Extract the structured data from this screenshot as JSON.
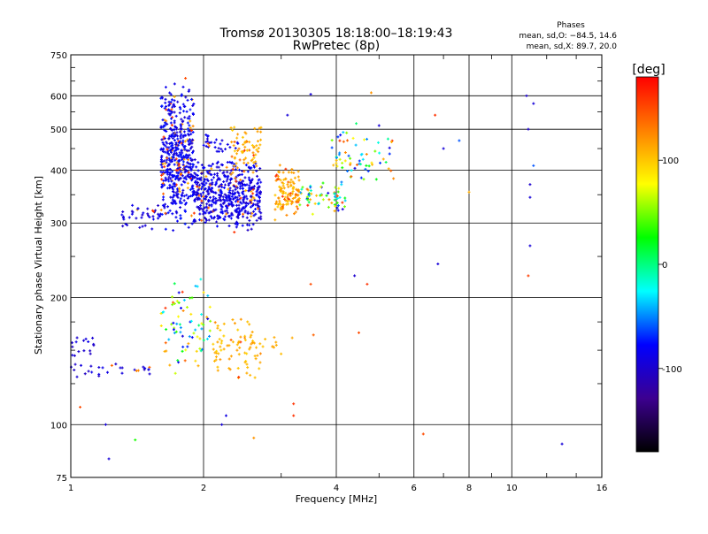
{
  "chart_data": {
    "type": "scatter",
    "title": "Tromsø 20130305 18:18:00–18:19:43",
    "subtitle": "RwPretec (8p)",
    "xlabel": "Frequency [MHz]",
    "ylabel": "Stationary phase Virtual Height [km]",
    "x_scale": "log",
    "y_scale": "log",
    "xlim": [
      1,
      16
    ],
    "ylim": [
      75,
      750
    ],
    "x_ticks": [
      1,
      2,
      4,
      6,
      8,
      10,
      16
    ],
    "x_tick_labels": [
      "1",
      "2",
      "4",
      "6",
      "8",
      "10",
      "16"
    ],
    "y_ticks": [
      75,
      100,
      200,
      300,
      400,
      500,
      600,
      750
    ],
    "y_tick_labels": [
      "75",
      "100",
      "200",
      "300",
      "400",
      "500",
      "600",
      "750"
    ],
    "grid": true,
    "colorbar": {
      "label": "[deg]",
      "range": [
        -180,
        180
      ],
      "ticks": [
        100,
        0,
        -100
      ],
      "tick_labels": [
        "100",
        "0",
        "-100"
      ],
      "stops": [
        "#000000",
        "#3c0090",
        "#0000ff",
        "#00ffff",
        "#00ff00",
        "#ffff00",
        "#ff8000",
        "#ff0000"
      ]
    },
    "stats": {
      "heading": "Phases",
      "line1": "mean, sd,O: −84.5, 14.6",
      "line2": "mean, sd,X:  89.7, 20.0"
    },
    "clusters": [
      {
        "f": [
          1.6,
          1.9
        ],
        "h": [
          280,
          640
        ],
        "n": 520,
        "phase": [
          -100,
          -70
        ],
        "warm": 0.12
      },
      {
        "f": [
          1.9,
          2.7
        ],
        "h": [
          285,
          430
        ],
        "n": 520,
        "phase": [
          -105,
          -75
        ],
        "warm": 0.08
      },
      {
        "f": [
          1.3,
          1.6
        ],
        "h": [
          285,
          340
        ],
        "n": 40,
        "phase": [
          -105,
          -80
        ],
        "warm": 0.1
      },
      {
        "f": [
          2.0,
          2.4
        ],
        "h": [
          430,
          500
        ],
        "n": 30,
        "phase": [
          -100,
          -80
        ],
        "warm": 0.2
      },
      {
        "f": [
          2.3,
          2.7
        ],
        "h": [
          380,
          520
        ],
        "n": 70,
        "phase": [
          95,
          120
        ],
        "warm": 0.3
      },
      {
        "f": [
          2.9,
          3.3
        ],
        "h": [
          300,
          420
        ],
        "n": 120,
        "phase": [
          95,
          125
        ],
        "warm": 0.25
      },
      {
        "f": [
          3.3,
          4.2
        ],
        "h": [
          310,
          380
        ],
        "n": 60,
        "phase": [
          -100,
          110
        ],
        "warm": 0.2
      },
      {
        "f": [
          3.9,
          5.4
        ],
        "h": [
          340,
          520
        ],
        "n": 70,
        "phase": [
          -110,
          120
        ],
        "warm": 0.2
      },
      {
        "f": [
          1.6,
          2.1
        ],
        "h": [
          130,
          230
        ],
        "n": 80,
        "phase": [
          -100,
          115
        ],
        "warm": 0.1
      },
      {
        "f": [
          2.1,
          2.7
        ],
        "h": [
          125,
          180
        ],
        "n": 80,
        "phase": [
          95,
          120
        ],
        "warm": 0.1
      },
      {
        "f": [
          1.0,
          1.15
        ],
        "h": [
          125,
          165
        ],
        "n": 25,
        "phase": [
          -105,
          -85
        ],
        "warm": 0.05
      },
      {
        "f": [
          1.15,
          1.55
        ],
        "h": [
          128,
          140
        ],
        "n": 20,
        "phase": [
          -105,
          -85
        ],
        "warm": 0.2
      },
      {
        "f": [
          2.7,
          3.2
        ],
        "h": [
          140,
          170
        ],
        "n": 10,
        "phase": [
          100,
          115
        ],
        "warm": 0.1
      }
    ],
    "sparse_points": [
      [
        1.05,
        110,
        150
      ],
      [
        1.2,
        100,
        -95
      ],
      [
        1.22,
        83,
        -95
      ],
      [
        1.4,
        92,
        30
      ],
      [
        1.72,
        640,
        -90
      ],
      [
        1.82,
        660,
        150
      ],
      [
        2.2,
        100,
        -95
      ],
      [
        2.25,
        105,
        -90
      ],
      [
        2.6,
        93,
        120
      ],
      [
        3.2,
        112,
        160
      ],
      [
        3.2,
        105,
        160
      ],
      [
        3.5,
        215,
        150
      ],
      [
        3.55,
        163,
        140
      ],
      [
        3.5,
        605,
        -95
      ],
      [
        3.1,
        540,
        -95
      ],
      [
        4.4,
        225,
        -100
      ],
      [
        4.5,
        165,
        150
      ],
      [
        4.7,
        215,
        160
      ],
      [
        4.8,
        610,
        120
      ],
      [
        5.0,
        510,
        -95
      ],
      [
        6.3,
        95,
        150
      ],
      [
        6.7,
        540,
        160
      ],
      [
        6.8,
        240,
        -95
      ],
      [
        7.0,
        450,
        -95
      ],
      [
        7.6,
        470,
        -60
      ],
      [
        8.0,
        355,
        110
      ],
      [
        10.8,
        600,
        -100
      ],
      [
        10.9,
        500,
        -100
      ],
      [
        11.0,
        370,
        -100
      ],
      [
        11.0,
        345,
        -95
      ],
      [
        11.0,
        265,
        -95
      ],
      [
        10.9,
        225,
        155
      ],
      [
        11.2,
        575,
        -95
      ],
      [
        11.2,
        410,
        -60
      ],
      [
        13.0,
        90,
        -95
      ]
    ]
  }
}
